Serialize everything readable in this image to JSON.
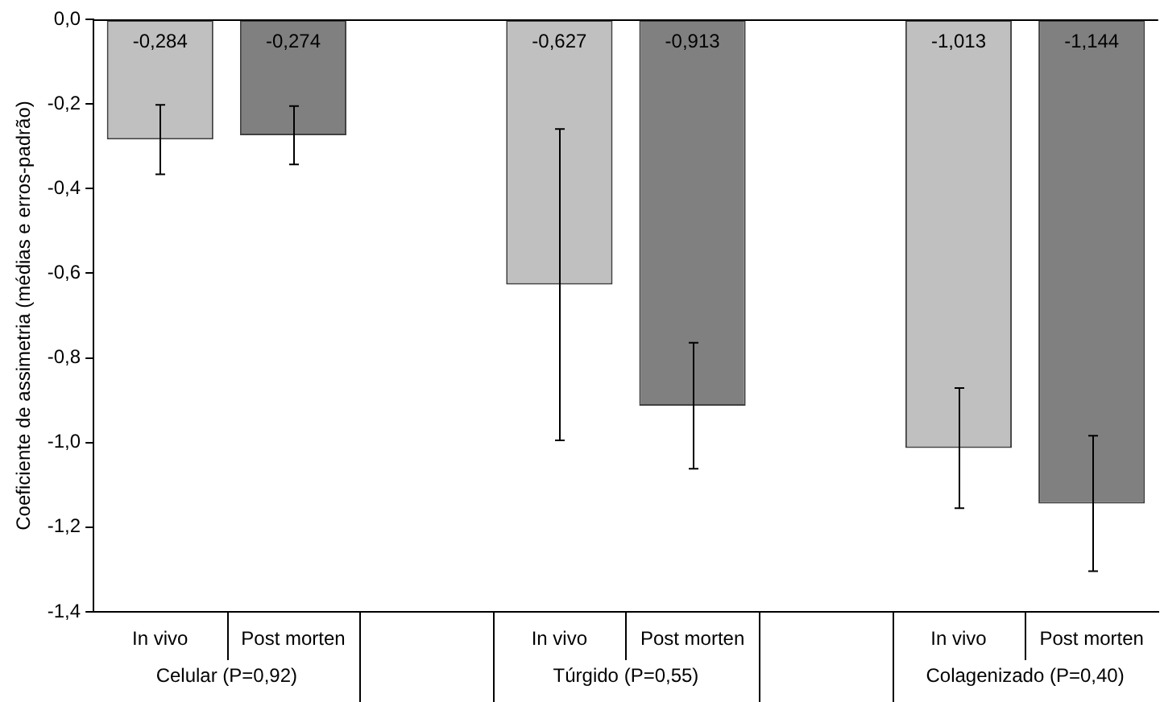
{
  "chart_data": {
    "type": "bar",
    "ylabel": "Coeficiente de assimetria (médias e erros-padrão)",
    "categories": [
      "In vivo",
      "Post morten",
      null,
      "In vivo",
      "Post morten",
      null,
      "In vivo",
      "Post morten"
    ],
    "values": [
      -0.284,
      -0.274,
      null,
      -0.627,
      -0.913,
      null,
      -1.013,
      -1.144
    ],
    "colors": [
      "#c0c0c0",
      "#808080",
      null,
      "#c0c0c0",
      "#808080",
      null,
      "#c0c0c0",
      "#808080"
    ],
    "errors": [
      0.082,
      0.069,
      null,
      0.368,
      0.149,
      null,
      0.142,
      0.16
    ],
    "value_labels": [
      "-0,284",
      "-0,274",
      null,
      "-0,627",
      "-0,913",
      null,
      "-1,013",
      "-1,144"
    ],
    "ylim": [
      -1.4,
      0
    ],
    "yticks": [
      {
        "value": 0,
        "label": "0,0"
      },
      {
        "value": -0.2,
        "label": "-0,2"
      },
      {
        "value": -0.4,
        "label": "-0,4"
      },
      {
        "value": -0.6,
        "label": "-0,6"
      },
      {
        "value": -0.8,
        "label": "-0,8"
      },
      {
        "value": -1,
        "label": "-1,0"
      },
      {
        "value": -1.2,
        "label": "-1,2"
      },
      {
        "value": -1.4,
        "label": "-1,4"
      }
    ],
    "annotations": [
      "Celular (P=0,92)",
      "Túrgido (P=0,55)",
      "Colagenizado (P=0,40)"
    ],
    "grid": false,
    "legend": false
  }
}
